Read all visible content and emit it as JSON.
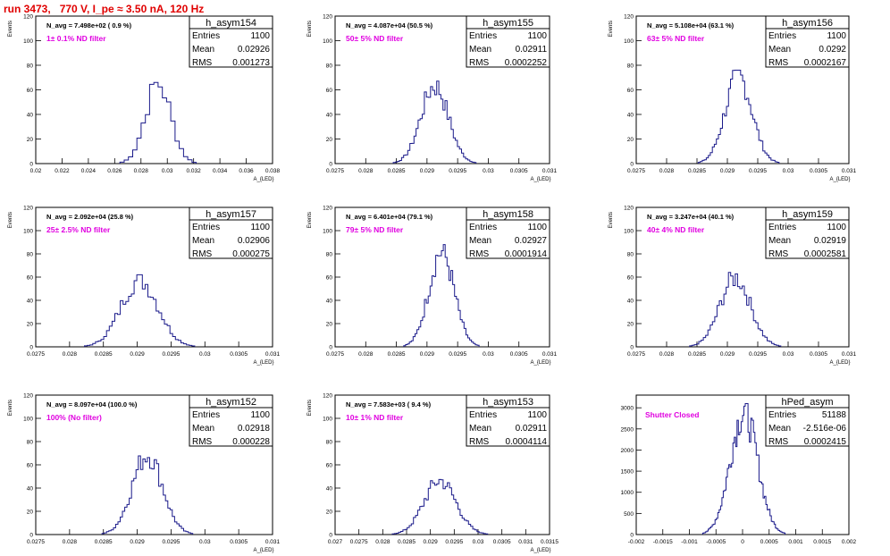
{
  "title": "run 3473,   770 V, I_pe ≈ 3.50 nA, 120 Hz",
  "colors": {
    "title": "#e00000",
    "histogram": "#1a1a8a",
    "filter_note": "#e000e0",
    "frame": "#000000"
  },
  "chart_data": [
    {
      "type": "histogram",
      "name": "h_asym154",
      "entries": "1100",
      "mean": "0.02926",
      "rms": "0.001273",
      "navg": "N_avg = 7.498e+02 ( 0.9 %)",
      "filter": "1± 0.1% ND filter",
      "ylabel": "Events",
      "xlabel": "A_{LED}",
      "xlim": [
        0.02,
        0.038
      ],
      "ylim": [
        0,
        120
      ],
      "xticks": [
        "0.02",
        "0.022",
        "0.024",
        "0.026",
        "0.028",
        "0.03",
        "0.032",
        "0.034",
        "0.036",
        "0.038"
      ],
      "yticks": [
        "0",
        "20",
        "40",
        "60",
        "80",
        "100",
        "120"
      ],
      "peak": 70,
      "bins": 18,
      "bin_low": 0.0264,
      "bin_high": 0.0322
    },
    {
      "type": "histogram",
      "name": "h_asym155",
      "entries": "1100",
      "mean": "0.02911",
      "rms": "0.0002252",
      "navg": "N_avg = 4.087e+04 (50.5 %)",
      "filter": "50± 5% ND filter",
      "ylabel": "Events",
      "xlabel": "A_{LED}",
      "xlim": [
        0.0275,
        0.031
      ],
      "ylim": [
        0,
        120
      ],
      "xticks": [
        "0.0275",
        "0.028",
        "0.0285",
        "0.029",
        "0.0295",
        "0.03",
        "0.0305",
        "0.031"
      ],
      "yticks": [
        "0",
        "20",
        "40",
        "60",
        "80",
        "100",
        "120"
      ],
      "peak": 68,
      "bins": 40,
      "bin_low": 0.02845,
      "bin_high": 0.0298
    },
    {
      "type": "histogram",
      "name": "h_asym156",
      "entries": "1100",
      "mean": "0.0292",
      "rms": "0.0002167",
      "navg": "N_avg = 5.108e+04 (63.1 %)",
      "filter": "63± 5% ND filter",
      "ylabel": "Events",
      "xlabel": "A_{LED}",
      "xlim": [
        0.0275,
        0.031
      ],
      "ylim": [
        0,
        120
      ],
      "xticks": [
        "0.0275",
        "0.028",
        "0.0285",
        "0.029",
        "0.0295",
        "0.03",
        "0.0305",
        "0.031"
      ],
      "yticks": [
        "0",
        "20",
        "40",
        "60",
        "80",
        "100",
        "120"
      ],
      "peak": 76,
      "bins": 40,
      "bin_low": 0.02852,
      "bin_high": 0.02985
    },
    {
      "type": "histogram",
      "name": "h_asym157",
      "entries": "1100",
      "mean": "0.02906",
      "rms": "0.000275",
      "navg": "N_avg = 2.092e+04 (25.8 %)",
      "filter": "25± 2.5% ND filter",
      "ylabel": "Events",
      "xlabel": "A_{LED}",
      "xlim": [
        0.0275,
        0.031
      ],
      "ylim": [
        0,
        120
      ],
      "xticks": [
        "0.0275",
        "0.028",
        "0.0285",
        "0.029",
        "0.0295",
        "0.03",
        "0.0305",
        "0.031"
      ],
      "yticks": [
        "0",
        "20",
        "40",
        "60",
        "80",
        "100",
        "120"
      ],
      "peak": 62,
      "bins": 40,
      "bin_low": 0.02822,
      "bin_high": 0.02985
    },
    {
      "type": "histogram",
      "name": "h_asym158",
      "entries": "1100",
      "mean": "0.02927",
      "rms": "0.0001914",
      "navg": "N_avg = 6.401e+04 (79.1 %)",
      "filter": "79± 5% ND filter",
      "ylabel": "Events",
      "xlabel": "A_{LED}",
      "xlim": [
        0.0275,
        0.031
      ],
      "ylim": [
        0,
        120
      ],
      "xticks": [
        "0.0275",
        "0.028",
        "0.0285",
        "0.029",
        "0.0295",
        "0.03",
        "0.0305",
        "0.031"
      ],
      "yticks": [
        "0",
        "20",
        "40",
        "60",
        "80",
        "100",
        "120"
      ],
      "peak": 88,
      "bins": 40,
      "bin_low": 0.02862,
      "bin_high": 0.02985
    },
    {
      "type": "histogram",
      "name": "h_asym159",
      "entries": "1100",
      "mean": "0.02919",
      "rms": "0.0002581",
      "navg": "N_avg = 3.247e+04 (40.1 %)",
      "filter": "40± 4% ND filter",
      "ylabel": "Events",
      "xlabel": "A_{LED}",
      "xlim": [
        0.0275,
        0.031
      ],
      "ylim": [
        0,
        120
      ],
      "xticks": [
        "0.0275",
        "0.028",
        "0.0285",
        "0.029",
        "0.0295",
        "0.03",
        "0.0305",
        "0.031"
      ],
      "yticks": [
        "0",
        "20",
        "40",
        "60",
        "80",
        "100",
        "120"
      ],
      "peak": 64,
      "bins": 40,
      "bin_low": 0.02838,
      "bin_high": 0.02988
    },
    {
      "type": "histogram",
      "name": "h_asym152",
      "entries": "1100",
      "mean": "0.02918",
      "rms": "0.000228",
      "navg": "N_avg = 8.097e+04 (100.0 %)",
      "filter": "100% (No filter)",
      "ylabel": "Events",
      "xlabel": "A_{LED}",
      "xlim": [
        0.0275,
        0.031
      ],
      "ylim": [
        0,
        120
      ],
      "xticks": [
        "0.0275",
        "0.028",
        "0.0285",
        "0.029",
        "0.0295",
        "0.03",
        "0.0305",
        "0.031"
      ],
      "yticks": [
        "0",
        "20",
        "40",
        "60",
        "80",
        "100",
        "120"
      ],
      "peak": 74,
      "bins": 40,
      "bin_low": 0.02848,
      "bin_high": 0.02982
    },
    {
      "type": "histogram",
      "name": "h_asym153",
      "entries": "1100",
      "mean": "0.02911",
      "rms": "0.0004114",
      "navg": "N_avg = 7.583e+03 ( 9.4 %)",
      "filter": "10± 1% ND filter",
      "ylabel": "Events",
      "xlabel": "A_{LED}",
      "xlim": [
        0.027,
        0.0315
      ],
      "ylim": [
        0,
        120
      ],
      "xticks": [
        "0.027",
        "0.0275",
        "0.028",
        "0.0285",
        "0.029",
        "0.0295",
        "0.03",
        "0.0305",
        "0.031",
        "0.0315"
      ],
      "yticks": [
        "0",
        "20",
        "40",
        "60",
        "80",
        "100",
        "120"
      ],
      "peak": 50,
      "bins": 45,
      "bin_low": 0.0282,
      "bin_high": 0.0302
    },
    {
      "type": "histogram",
      "name": "hPed_asym",
      "entries": "51188",
      "mean": "-2.516e-06",
      "rms": "0.0002415",
      "navg": "",
      "filter": "Shutter Closed",
      "ylabel": "",
      "xlabel": "",
      "xlim": [
        -0.002,
        0.002
      ],
      "ylim": [
        0,
        3300
      ],
      "xticks": [
        "-0.002",
        "-0.0015",
        "-0.001",
        "-0.0005",
        "0",
        "0.0005",
        "0.001",
        "0.0015",
        "0.002"
      ],
      "yticks": [
        "0",
        "500",
        "1000",
        "1500",
        "2000",
        "2500",
        "3000"
      ],
      "peak": 3100,
      "bins": 60,
      "bin_low": -0.00075,
      "bin_high": 0.0008
    }
  ]
}
